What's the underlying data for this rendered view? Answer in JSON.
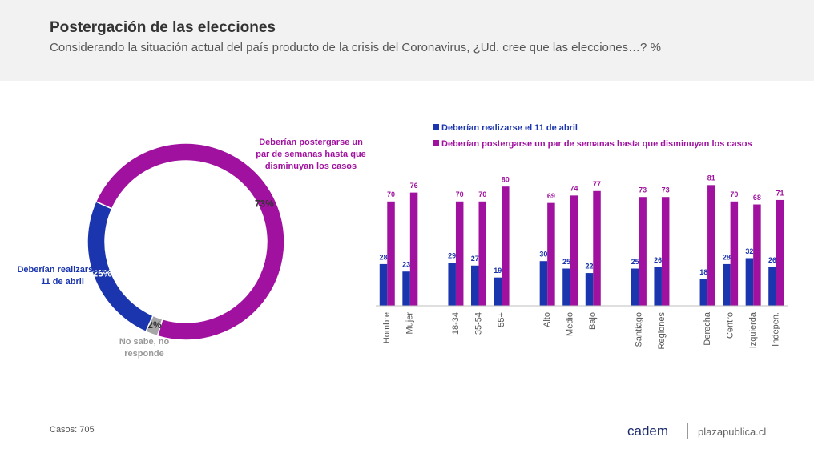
{
  "header": {
    "title": "Postergación de las elecciones",
    "subtitle": "Considerando la situación actual del país producto de la crisis del Coronavirus, ¿Ud. cree que las elecciones…? %"
  },
  "chart_data": [
    {
      "type": "donut",
      "categories": [
        "Deberían postergarse un par de semanas hasta que disminuyan los casos",
        "No sabe, no responde",
        "Deberían realizarse el 11 de abril"
      ],
      "values": [
        73,
        2,
        25
      ],
      "value_labels": [
        "73%",
        "2%",
        "25%"
      ],
      "colors": [
        "#a0119f",
        "#a6a6a6",
        "#1a35ad"
      ]
    },
    {
      "type": "bar",
      "categories": [
        "Hombre",
        "Mujer",
        null,
        "18-34",
        "35-54",
        "55+",
        null,
        "Alto",
        "Medio",
        "Bajo",
        null,
        "Santiago",
        "Regiones",
        null,
        "Derecha",
        "Centro",
        "Izquierda",
        "Indepen."
      ],
      "series": [
        {
          "name": "Deberían realizarse el 11 de abril",
          "color": "#1a35ad",
          "values": [
            28,
            23,
            null,
            29,
            27,
            19,
            null,
            30,
            25,
            22,
            null,
            25,
            26,
            null,
            18,
            28,
            32,
            26
          ]
        },
        {
          "name": "Deberían postergarse un par de semanas hasta que disminuyan los casos",
          "color": "#a0119f",
          "values": [
            70,
            76,
            null,
            70,
            70,
            80,
            null,
            69,
            74,
            77,
            null,
            73,
            73,
            null,
            81,
            70,
            68,
            71
          ]
        }
      ],
      "ylim": [
        0,
        100
      ],
      "legend": "top"
    }
  ],
  "footer": {
    "note": "Casos: 705",
    "brand": "cadem",
    "site": "plazapublica.cl"
  }
}
